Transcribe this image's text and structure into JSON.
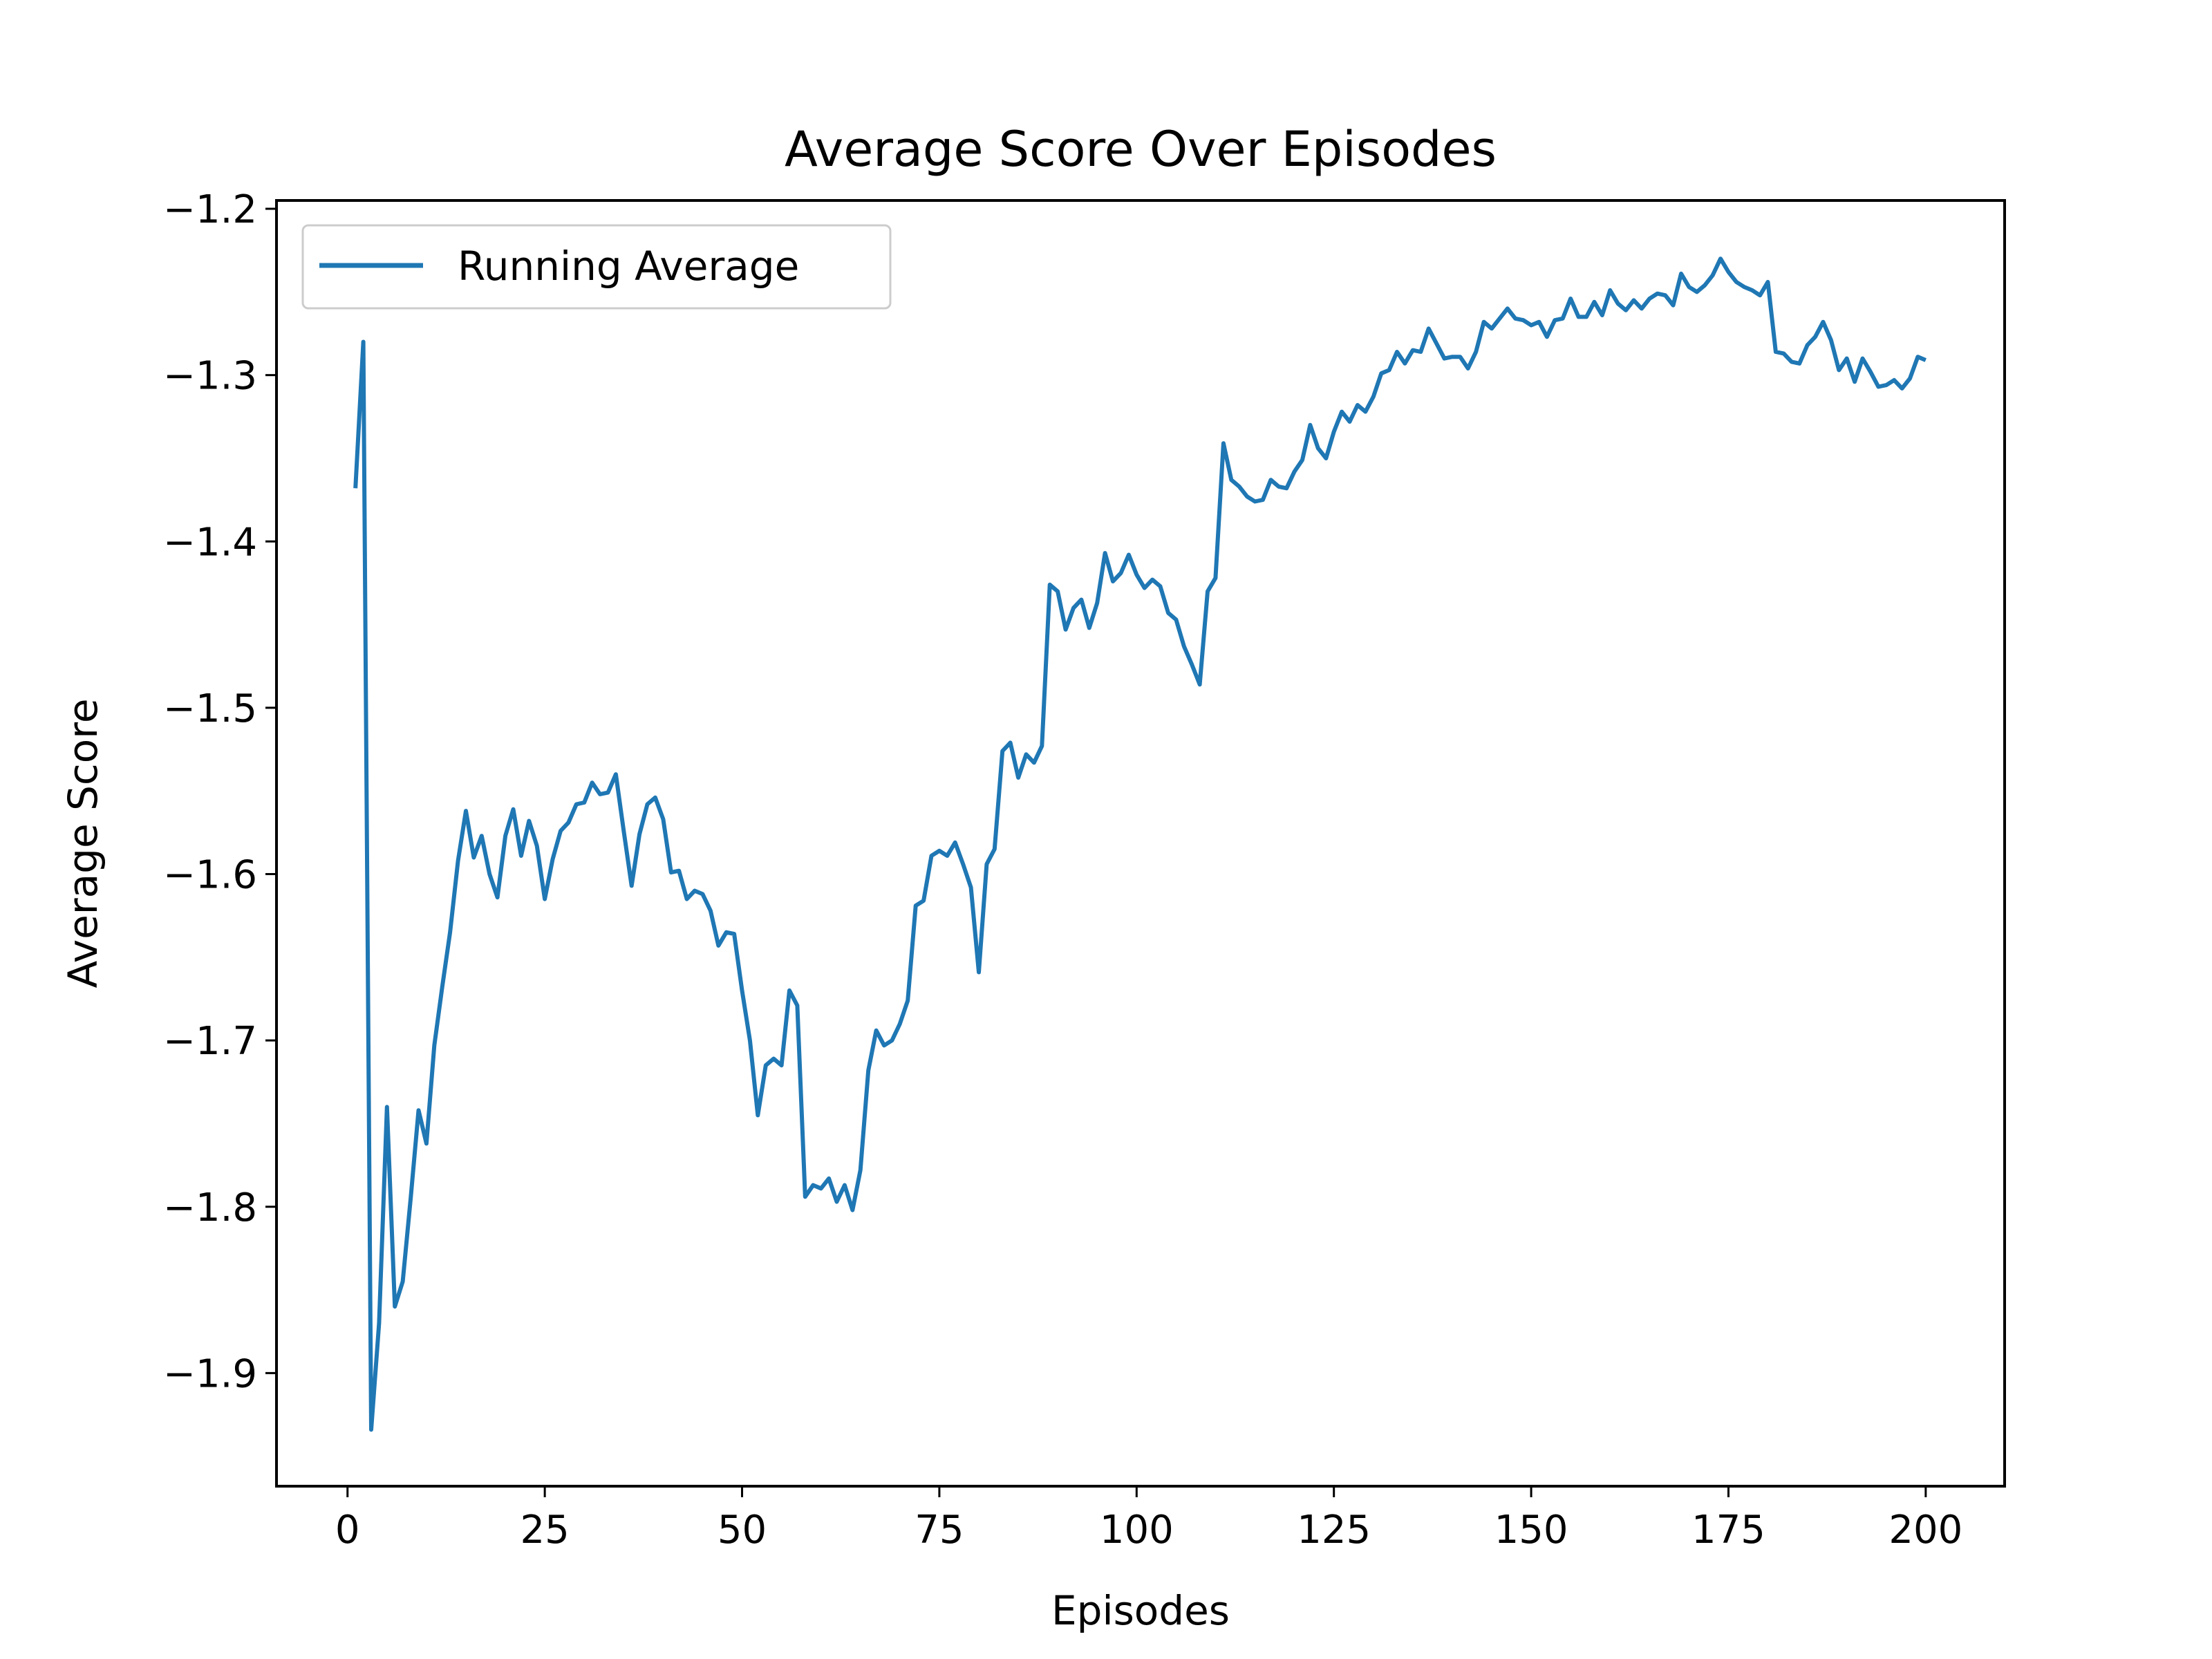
{
  "chart_data": {
    "type": "line",
    "title": "Average Score Over Episodes",
    "xlabel": "Episodes",
    "ylabel": "Average Score",
    "xlim": [
      -9,
      210
    ],
    "ylim": [
      -1.968,
      -1.195
    ],
    "xticks": [
      0,
      25,
      50,
      75,
      100,
      125,
      150,
      175,
      200
    ],
    "yticks": [
      -1.9,
      -1.8,
      -1.7,
      -1.6,
      -1.5,
      -1.4,
      -1.3,
      -1.2
    ],
    "ytick_labels": [
      "−1.9",
      "−1.8",
      "−1.7",
      "−1.6",
      "−1.5",
      "−1.4",
      "−1.3",
      "−1.2"
    ],
    "grid": false,
    "legend_position": "top-left",
    "series": [
      {
        "name": "Running Average",
        "color": "#1f77b4",
        "x": [
          1,
          2,
          3,
          4,
          5,
          6,
          7,
          8,
          9,
          10,
          11,
          12,
          13,
          14,
          15,
          16,
          17,
          18,
          19,
          20,
          21,
          22,
          23,
          24,
          25,
          26,
          27,
          28,
          29,
          30,
          31,
          32,
          33,
          34,
          35,
          36,
          37,
          38,
          39,
          40,
          41,
          42,
          43,
          44,
          45,
          46,
          47,
          48,
          49,
          50,
          51,
          52,
          53,
          54,
          55,
          56,
          57,
          58,
          59,
          60,
          61,
          62,
          63,
          64,
          65,
          66,
          67,
          68,
          69,
          70,
          71,
          72,
          73,
          74,
          75,
          76,
          77,
          78,
          79,
          80,
          81,
          82,
          83,
          84,
          85,
          86,
          87,
          88,
          89,
          90,
          91,
          92,
          93,
          94,
          95,
          96,
          97,
          98,
          99,
          100,
          101,
          102,
          103,
          104,
          105,
          106,
          107,
          108,
          109,
          110,
          111,
          112,
          113,
          114,
          115,
          116,
          117,
          118,
          119,
          120,
          121,
          122,
          123,
          124,
          125,
          126,
          127,
          128,
          129,
          130,
          131,
          132,
          133,
          134,
          135,
          136,
          137,
          138,
          139,
          140,
          141,
          142,
          143,
          144,
          145,
          146,
          147,
          148,
          149,
          150,
          151,
          152,
          153,
          154,
          155,
          156,
          157,
          158,
          159,
          160,
          161,
          162,
          163,
          164,
          165,
          166,
          167,
          168,
          169,
          170,
          171,
          172,
          173,
          174,
          175,
          176,
          177,
          178,
          179,
          180,
          181,
          182,
          183,
          184,
          185,
          186,
          187,
          188,
          189,
          190,
          191,
          192,
          193,
          194,
          195,
          196,
          197,
          198,
          199,
          200
        ],
        "values": [
          -1.368,
          -1.28,
          -1.934,
          -1.87,
          -1.74,
          -1.86,
          -1.845,
          -1.795,
          -1.742,
          -1.762,
          -1.703,
          -1.668,
          -1.635,
          -1.592,
          -1.562,
          -1.59,
          -1.577,
          -1.6,
          -1.614,
          -1.577,
          -1.561,
          -1.589,
          -1.568,
          -1.583,
          -1.615,
          -1.591,
          -1.574,
          -1.569,
          -1.558,
          -1.557,
          -1.545,
          -1.552,
          -1.551,
          -1.54,
          -1.574,
          -1.607,
          -1.576,
          -1.558,
          -1.554,
          -1.567,
          -1.599,
          -1.598,
          -1.615,
          -1.61,
          -1.612,
          -1.622,
          -1.643,
          -1.635,
          -1.636,
          -1.67,
          -1.7,
          -1.745,
          -1.715,
          -1.711,
          -1.715,
          -1.67,
          -1.679,
          -1.794,
          -1.787,
          -1.789,
          -1.783,
          -1.797,
          -1.787,
          -1.802,
          -1.778,
          -1.718,
          -1.694,
          -1.703,
          -1.7,
          -1.69,
          -1.676,
          -1.619,
          -1.616,
          -1.589,
          -1.586,
          -1.589,
          -1.581,
          -1.594,
          -1.608,
          -1.659,
          -1.594,
          -1.585,
          -1.526,
          -1.521,
          -1.542,
          -1.528,
          -1.533,
          -1.523,
          -1.426,
          -1.43,
          -1.453,
          -1.44,
          -1.435,
          -1.452,
          -1.437,
          -1.407,
          -1.424,
          -1.419,
          -1.408,
          -1.42,
          -1.428,
          -1.423,
          -1.427,
          -1.443,
          -1.447,
          -1.463,
          -1.474,
          -1.486,
          -1.43,
          -1.422,
          -1.341,
          -1.363,
          -1.367,
          -1.373,
          -1.376,
          -1.375,
          -1.363,
          -1.367,
          -1.368,
          -1.358,
          -1.351,
          -1.33,
          -1.344,
          -1.35,
          -1.334,
          -1.322,
          -1.328,
          -1.318,
          -1.322,
          -1.313,
          -1.299,
          -1.297,
          -1.286,
          -1.293,
          -1.285,
          -1.286,
          -1.272,
          -1.281,
          -1.29,
          -1.289,
          -1.289,
          -1.296,
          -1.286,
          -1.268,
          -1.272,
          -1.266,
          -1.26,
          -1.266,
          -1.267,
          -1.27,
          -1.268,
          -1.277,
          -1.267,
          -1.266,
          -1.254,
          -1.265,
          -1.265,
          -1.256,
          -1.264,
          -1.249,
          -1.257,
          -1.261,
          -1.255,
          -1.26,
          -1.254,
          -1.251,
          -1.252,
          -1.258,
          -1.239,
          -1.247,
          -1.25,
          -1.246,
          -1.24,
          -1.23,
          -1.238,
          -1.244,
          -1.247,
          -1.249,
          -1.252,
          -1.244,
          -1.286,
          -1.287,
          -1.292,
          -1.293,
          -1.282,
          -1.277,
          -1.268,
          -1.279,
          -1.297,
          -1.29,
          -1.304,
          -1.29,
          -1.298,
          -1.307,
          -1.306,
          -1.303,
          -1.308,
          -1.302,
          -1.289,
          -1.291
        ]
      }
    ]
  }
}
